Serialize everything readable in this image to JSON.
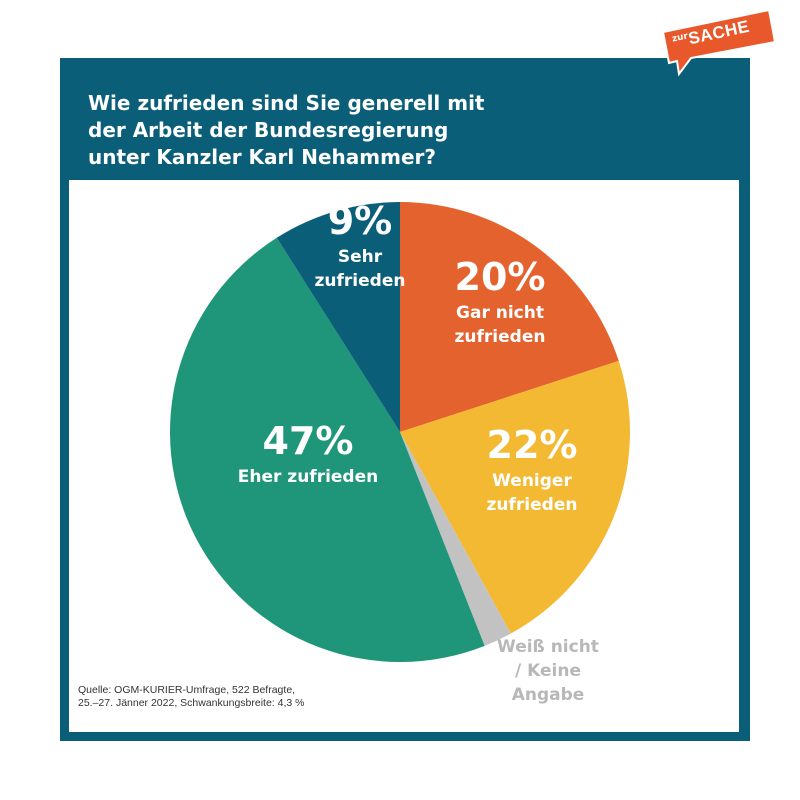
{
  "title": "Wie zufrieden sind Sie generell mit der Arbeit der Bundesregierung unter Kanzler Karl Nehammer?",
  "source_line1": "Quelle: OGM-KURIER-Umfrage, 522 Befragte,",
  "source_line2": "25.–27. Jänner 2022, Schwankungsbreite: 4,3 %",
  "logo": {
    "small": "zur",
    "big": "SACHE"
  },
  "colors": {
    "frame": "#0b5e78",
    "logo": "#e8582a"
  },
  "chart_data": {
    "type": "pie",
    "title": "Wie zufrieden sind Sie generell mit der Arbeit der Bundesregierung unter Kanzler Karl Nehammer?",
    "unit": "%",
    "start": "12 o'clock, clockwise",
    "slices": [
      {
        "value": 20,
        "pct_label": "20%",
        "label_lines": [
          "Gar nicht",
          "zufrieden"
        ],
        "color": "#e4622e",
        "text_color": "#ffffff"
      },
      {
        "value": 22,
        "pct_label": "22%",
        "label_lines": [
          "Weniger",
          "zufrieden"
        ],
        "color": "#f3b933",
        "text_color": "#ffffff"
      },
      {
        "value": 2,
        "pct_label": "",
        "label_lines": [
          "Weiß nicht",
          "/ Keine",
          "Angabe"
        ],
        "color": "#c2c2c2",
        "text_color": "#b8b8b8"
      },
      {
        "value": 47,
        "pct_label": "47%",
        "label_lines": [
          "Eher zufrieden"
        ],
        "color": "#1f967a",
        "text_color": "#ffffff"
      },
      {
        "value": 9,
        "pct_label": "9%",
        "label_lines": [
          "Sehr",
          "zufrieden"
        ],
        "color": "#0b5e78",
        "text_color": "#ffffff"
      }
    ]
  }
}
